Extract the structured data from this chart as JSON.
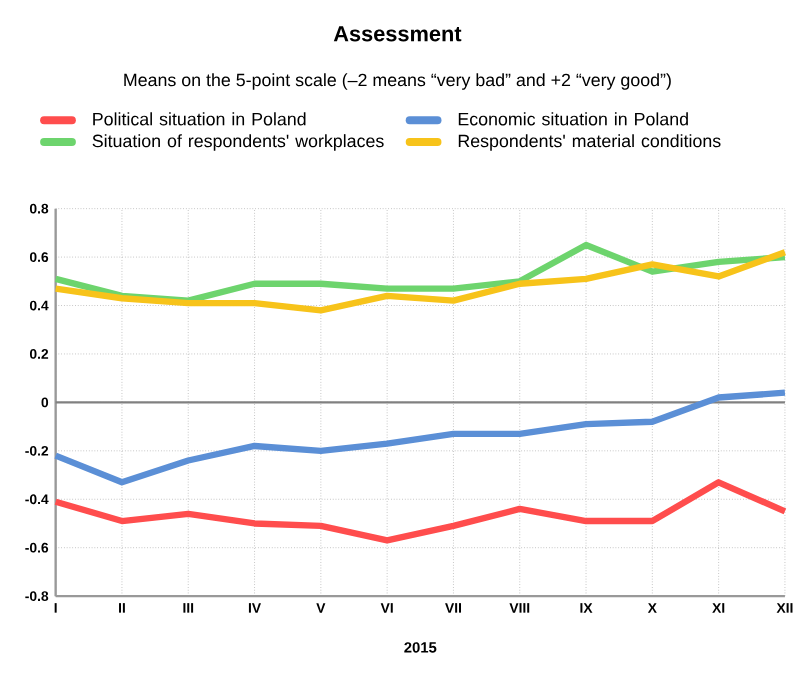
{
  "chart_data": {
    "type": "line",
    "title": "Assessment",
    "subtitle": "Means on the 5-point scale (–2 means “very bad” and +2 “very good”)",
    "xlabel": "2015",
    "categories": [
      "I",
      "II",
      "III",
      "IV",
      "V",
      "VI",
      "VII",
      "VIII",
      "IX",
      "X",
      "XI",
      "XII"
    ],
    "series": [
      {
        "name": "Political situation in Poland",
        "color": "#ff4d4d",
        "values": [
          -0.41,
          -0.49,
          -0.46,
          -0.5,
          -0.51,
          -0.57,
          -0.51,
          -0.44,
          -0.49,
          -0.49,
          -0.33,
          -0.45
        ]
      },
      {
        "name": "Economic situation in Poland",
        "color": "#5b8fd6",
        "values": [
          -0.22,
          -0.33,
          -0.24,
          -0.18,
          -0.2,
          -0.17,
          -0.13,
          -0.13,
          -0.09,
          -0.08,
          0.02,
          0.04
        ]
      },
      {
        "name": "Situation of respondents' workplaces",
        "color": "#6dd46d",
        "values": [
          0.51,
          0.44,
          0.42,
          0.49,
          0.49,
          0.47,
          0.47,
          0.5,
          0.65,
          0.54,
          0.58,
          0.6
        ]
      },
      {
        "name": "Respondents' material conditions",
        "color": "#f7c31a",
        "values": [
          0.47,
          0.43,
          0.41,
          0.41,
          0.38,
          0.44,
          0.42,
          0.49,
          0.51,
          0.57,
          0.52,
          0.62
        ]
      }
    ],
    "ylim": [
      -0.8,
      0.8
    ],
    "yticks": [
      -0.8,
      -0.6,
      -0.4,
      -0.2,
      0,
      0.2,
      0.4,
      0.6,
      0.8
    ],
    "ref_lines": [
      {
        "axis": "y",
        "value": 0,
        "color": "#808080"
      }
    ],
    "grid": true,
    "legend": "top",
    "marker": "none",
    "line_style": "solid"
  }
}
